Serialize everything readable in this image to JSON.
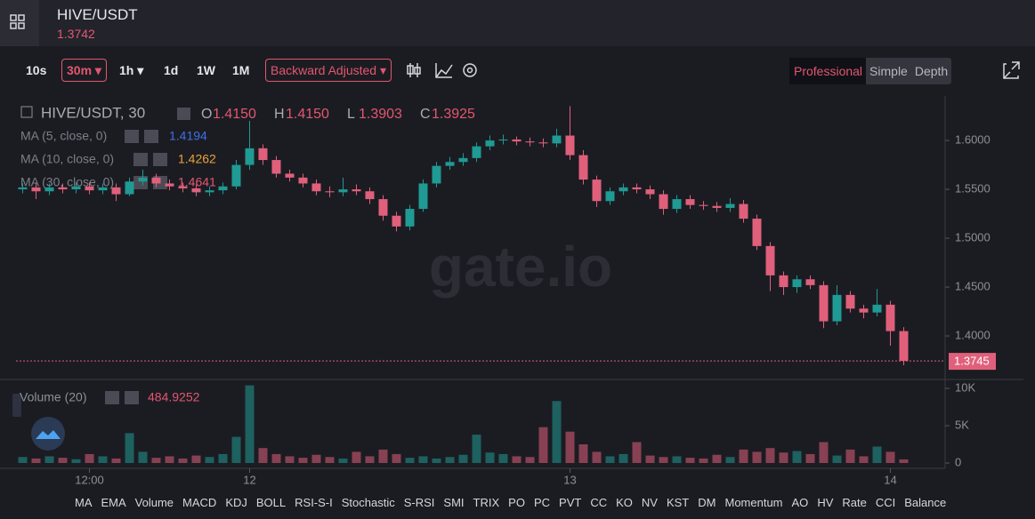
{
  "header": {
    "symbol": "HIVE/USDT",
    "price": "1.3742"
  },
  "toolbar": {
    "intervals": [
      "10s",
      "30m",
      "1h",
      "1d",
      "1W",
      "1M"
    ],
    "adjust": "Backward Adjusted",
    "views": [
      "Professional",
      "Simple",
      "Depth"
    ]
  },
  "legend": {
    "symbol": "HIVE/USDT, 30",
    "ohlc": [
      {
        "key": "O",
        "value": "1.4150"
      },
      {
        "key": "H",
        "value": "1.4150"
      },
      {
        "key": "L",
        "value": "1.3903"
      },
      {
        "key": "C",
        "value": "1.3925"
      }
    ],
    "ma": [
      {
        "label": "MA (5, close, 0)",
        "value": 1.4194,
        "color": "#3f6fe8"
      },
      {
        "label": "MA (10, close, 0)",
        "value": 1.4262,
        "color": "#e9a23b"
      },
      {
        "label": "MA (30, close, 0)",
        "value": 1.4641,
        "color": "#e2576f"
      }
    ]
  },
  "volume_legend": {
    "label": "Volume (20)"
  },
  "watermark": "gate.io",
  "indicators": [
    "MA",
    "EMA",
    "Volume",
    "MACD",
    "KDJ",
    "BOLL",
    "RSI-S-I",
    "Stochastic",
    "S-RSI",
    "SMI",
    "TRIX",
    "PO",
    "PC",
    "PVT",
    "CC",
    "KO",
    "NV",
    "KST",
    "DM",
    "Momentum",
    "AO",
    "HV",
    "Rate",
    "CCI",
    "Balance"
  ],
  "chart_data": {
    "type": "candlestick",
    "up_color": "#1f9a94",
    "down_color": "#e0607b",
    "x": [
      -17,
      -16,
      -15,
      -14,
      -13,
      -12,
      -11,
      -10,
      -9,
      -8,
      -7,
      -6,
      -5,
      -4,
      -3,
      -2,
      -1,
      0,
      1,
      2,
      3,
      4,
      5,
      6,
      7,
      8,
      9,
      10,
      11,
      12,
      13,
      14,
      15,
      16,
      17,
      18,
      19,
      20,
      21,
      22,
      23,
      24,
      25,
      26,
      27,
      28,
      29,
      30,
      31,
      32,
      33,
      34,
      35,
      36,
      37,
      38,
      39,
      40,
      41,
      42,
      43,
      44,
      45,
      46,
      47,
      48,
      49
    ],
    "candles": [
      [
        1.55,
        1.556,
        1.546,
        1.552
      ],
      [
        1.552,
        1.556,
        1.54,
        1.548
      ],
      [
        1.548,
        1.556,
        1.544,
        1.552
      ],
      [
        1.552,
        1.556,
        1.546,
        1.55
      ],
      [
        1.55,
        1.557,
        1.546,
        1.553
      ],
      [
        1.553,
        1.557,
        1.545,
        1.549
      ],
      [
        1.549,
        1.556,
        1.545,
        1.552
      ],
      [
        1.552,
        1.556,
        1.538,
        1.545
      ],
      [
        1.545,
        1.562,
        1.543,
        1.558
      ],
      [
        1.558,
        1.57,
        1.554,
        1.562
      ],
      [
        1.562,
        1.566,
        1.552,
        1.556
      ],
      [
        1.556,
        1.56,
        1.549,
        1.553
      ],
      [
        1.553,
        1.557,
        1.547,
        1.551
      ],
      [
        1.551,
        1.555,
        1.543,
        1.547
      ],
      [
        1.547,
        1.553,
        1.543,
        1.549
      ],
      [
        1.549,
        1.557,
        1.545,
        1.553
      ],
      [
        1.553,
        1.58,
        1.55,
        1.575
      ],
      [
        1.575,
        1.62,
        1.57,
        1.592
      ],
      [
        1.592,
        1.596,
        1.575,
        1.58
      ],
      [
        1.58,
        1.584,
        1.562,
        1.566
      ],
      [
        1.566,
        1.57,
        1.558,
        1.562
      ],
      [
        1.562,
        1.566,
        1.552,
        1.556
      ],
      [
        1.556,
        1.56,
        1.544,
        1.548
      ],
      [
        1.548,
        1.553,
        1.542,
        1.547
      ],
      [
        1.547,
        1.562,
        1.543,
        1.55
      ],
      [
        1.55,
        1.555,
        1.544,
        1.548
      ],
      [
        1.548,
        1.552,
        1.535,
        1.54
      ],
      [
        1.54,
        1.544,
        1.518,
        1.523
      ],
      [
        1.523,
        1.527,
        1.507,
        1.512
      ],
      [
        1.512,
        1.534,
        1.508,
        1.53
      ],
      [
        1.53,
        1.56,
        1.527,
        1.556
      ],
      [
        1.556,
        1.578,
        1.552,
        1.574
      ],
      [
        1.574,
        1.583,
        1.57,
        1.578
      ],
      [
        1.578,
        1.587,
        1.574,
        1.582
      ],
      [
        1.582,
        1.598,
        1.578,
        1.594
      ],
      [
        1.594,
        1.605,
        1.59,
        1.6
      ],
      [
        1.6,
        1.606,
        1.596,
        1.601
      ],
      [
        1.601,
        1.604,
        1.595,
        1.599
      ],
      [
        1.599,
        1.603,
        1.594,
        1.598
      ],
      [
        1.598,
        1.602,
        1.593,
        1.597
      ],
      [
        1.597,
        1.612,
        1.593,
        1.605
      ],
      [
        1.605,
        1.635,
        1.58,
        1.585
      ],
      [
        1.585,
        1.59,
        1.555,
        1.56
      ],
      [
        1.56,
        1.564,
        1.532,
        1.538
      ],
      [
        1.538,
        1.552,
        1.534,
        1.548
      ],
      [
        1.548,
        1.556,
        1.544,
        1.552
      ],
      [
        1.552,
        1.556,
        1.546,
        1.55
      ],
      [
        1.55,
        1.554,
        1.54,
        1.545
      ],
      [
        1.545,
        1.549,
        1.524,
        1.53
      ],
      [
        1.53,
        1.544,
        1.526,
        1.54
      ],
      [
        1.54,
        1.544,
        1.53,
        1.534
      ],
      [
        1.534,
        1.538,
        1.529,
        1.533
      ],
      [
        1.533,
        1.537,
        1.527,
        1.531
      ],
      [
        1.531,
        1.541,
        1.527,
        1.535
      ],
      [
        1.535,
        1.539,
        1.516,
        1.52
      ],
      [
        1.52,
        1.524,
        1.488,
        1.492
      ],
      [
        1.492,
        1.496,
        1.446,
        1.462
      ],
      [
        1.462,
        1.466,
        1.442,
        1.45
      ],
      [
        1.45,
        1.462,
        1.444,
        1.458
      ],
      [
        1.458,
        1.462,
        1.448,
        1.452
      ],
      [
        1.452,
        1.456,
        1.408,
        1.415
      ],
      [
        1.415,
        1.452,
        1.411,
        1.442
      ],
      [
        1.442,
        1.446,
        1.424,
        1.428
      ],
      [
        1.428,
        1.432,
        1.418,
        1.424
      ],
      [
        1.424,
        1.448,
        1.42,
        1.432
      ],
      [
        1.432,
        1.436,
        1.39,
        1.405
      ],
      [
        1.405,
        1.409,
        1.37,
        1.3745
      ]
    ],
    "volume": [
      800,
      600,
      900,
      700,
      500,
      1200,
      900,
      600,
      4000,
      1500,
      700,
      900,
      600,
      1000,
      800,
      1200,
      3500,
      10400,
      2000,
      1200,
      900,
      700,
      1100,
      800,
      600,
      1500,
      900,
      1800,
      1200,
      700,
      900,
      600,
      800,
      1100,
      3800,
      1400,
      1200,
      900,
      800,
      4800,
      8300,
      4200,
      2500,
      1500,
      900,
      1200,
      2800,
      1000,
      800,
      900,
      700,
      600,
      1100,
      800,
      1800,
      1500,
      2000,
      1400,
      1600,
      1200,
      2800,
      1000,
      1800,
      900,
      2200,
      1500,
      484.9252
    ],
    "xlim": [
      -17.5,
      52
    ],
    "xticks": [
      {
        "value": -12,
        "label": "12:00"
      },
      {
        "value": 0,
        "label": "12"
      },
      {
        "value": 24,
        "label": "13"
      },
      {
        "value": 48,
        "label": "14"
      }
    ],
    "ylim": [
      1.3555,
      1.6455
    ],
    "yticks": [
      {
        "value": 1.6,
        "label": "1.6000"
      },
      {
        "value": 1.55,
        "label": "1.5500"
      },
      {
        "value": 1.5,
        "label": "1.5000"
      },
      {
        "value": 1.45,
        "label": "1.4500"
      },
      {
        "value": 1.4,
        "label": "1.4000"
      }
    ],
    "volume_ylim": [
      0,
      10833
    ],
    "volume_yticks": [
      {
        "value": 10000,
        "label": "10K"
      },
      {
        "value": 5000,
        "label": "5K"
      },
      0
    ]
  }
}
